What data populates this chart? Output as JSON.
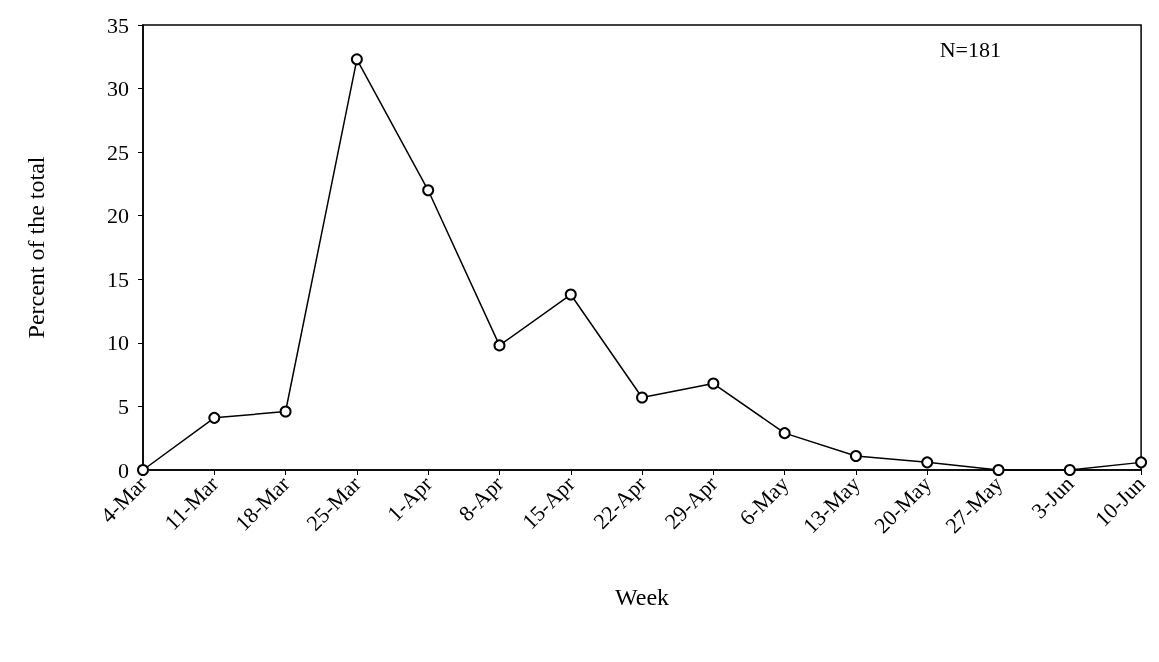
{
  "chart_data": {
    "type": "line",
    "xlabel": "Week",
    "ylabel": "Percent of the total",
    "categories": [
      "4-Mar",
      "11-Mar",
      "18-Mar",
      "25-Mar",
      "1-Apr",
      "8-Apr",
      "15-Apr",
      "22-Apr",
      "29-Apr",
      "6-May",
      "13-May",
      "20-May",
      "27-May",
      "3-Jun",
      "10-Jun"
    ],
    "series": [
      {
        "color": "#000000",
        "values": [
          0,
          4.1,
          4.6,
          32.3,
          22.0,
          9.8,
          13.8,
          5.7,
          6.8,
          2.9,
          1.1,
          0.6,
          0,
          0,
          0.6
        ]
      }
    ],
    "ylim": [
      0,
      35
    ],
    "yticks": [
      0,
      5,
      10,
      15,
      20,
      25,
      30,
      35
    ],
    "grid": false,
    "marker": "circle",
    "line_style": "solid",
    "annotations": [
      "N=181"
    ]
  }
}
